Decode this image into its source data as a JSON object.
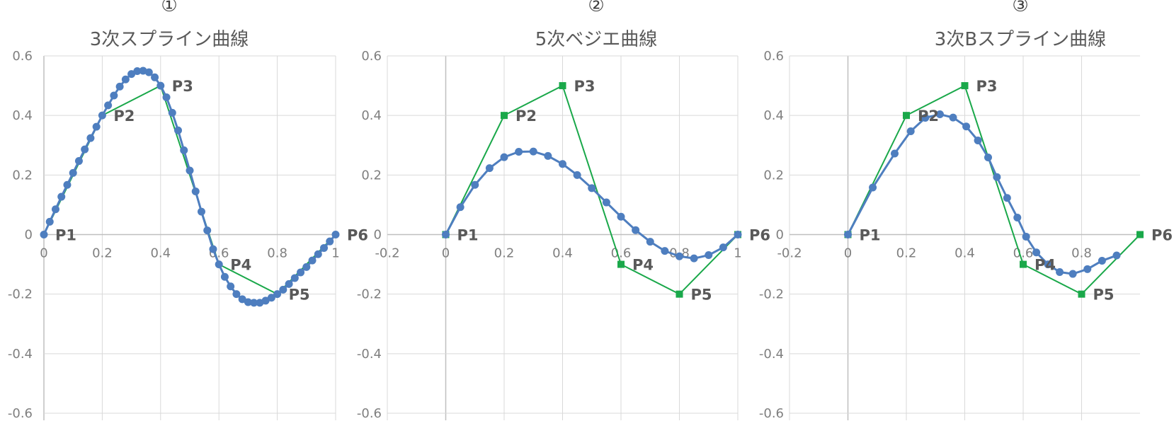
{
  "chart_data": [
    {
      "type": "scatter",
      "number": "①",
      "title": "3次スプライン曲線",
      "xlim": [
        0,
        1
      ],
      "ylim": [
        -0.6,
        0.6
      ],
      "x_ticks": [
        0,
        0.2,
        0.4,
        0.6,
        0.8,
        1
      ],
      "x_tick_labels": [
        "0",
        "0.2",
        "0.4",
        "0.6",
        "0.8",
        "1"
      ],
      "y_ticks": [
        -0.6,
        -0.4,
        -0.2,
        0,
        0.2,
        0.4,
        0.6
      ],
      "y_tick_labels": [
        "-0.6",
        "-0.4",
        "-0.2",
        "0",
        "0.2",
        "0.4",
        "0.6"
      ],
      "grid": true,
      "control_points": [
        {
          "label": "P1",
          "x": 0,
          "y": 0
        },
        {
          "label": "P2",
          "x": 0.2,
          "y": 0.4
        },
        {
          "label": "P3",
          "x": 0.4,
          "y": 0.5
        },
        {
          "label": "P4",
          "x": 0.6,
          "y": -0.1
        },
        {
          "label": "P5",
          "x": 0.8,
          "y": -0.2
        },
        {
          "label": "P6",
          "x": 1,
          "y": 0
        }
      ],
      "control_marker": "none",
      "curve": {
        "x": [
          0,
          0.02,
          0.04,
          0.06,
          0.08,
          0.1,
          0.12,
          0.14,
          0.16,
          0.18,
          0.2,
          0.22,
          0.24,
          0.26,
          0.28,
          0.3,
          0.32,
          0.34,
          0.36,
          0.38,
          0.4,
          0.42,
          0.44,
          0.46,
          0.48,
          0.5,
          0.52,
          0.54,
          0.56,
          0.58,
          0.6,
          0.62,
          0.64,
          0.66,
          0.68,
          0.7,
          0.72,
          0.74,
          0.76,
          0.78,
          0.8,
          0.82,
          0.84,
          0.86,
          0.88,
          0.9,
          0.92,
          0.94,
          0.96,
          0.98,
          1
        ],
        "y": [
          0,
          0.043,
          0.085,
          0.127,
          0.167,
          0.207,
          0.247,
          0.286,
          0.324,
          0.362,
          0.4,
          0.434,
          0.467,
          0.497,
          0.521,
          0.539,
          0.549,
          0.55,
          0.545,
          0.528,
          0.5,
          0.461,
          0.409,
          0.35,
          0.283,
          0.215,
          0.145,
          0.077,
          0.014,
          -0.049,
          -0.1,
          -0.142,
          -0.174,
          -0.2,
          -0.217,
          -0.227,
          -0.229,
          -0.229,
          -0.222,
          -0.212,
          -0.2,
          -0.185,
          -0.166,
          -0.146,
          -0.127,
          -0.109,
          -0.087,
          -0.066,
          -0.045,
          -0.023,
          0
        ]
      },
      "colors": {
        "curve": "#4e7ebf",
        "control": "#1aa84a",
        "grid": "#d9d9d9",
        "axis": "#bfbfbf"
      }
    },
    {
      "type": "scatter",
      "number": "②",
      "title": "5次ベジエ曲線",
      "xlim": [
        -0.2,
        1
      ],
      "ylim": [
        -0.6,
        0.6
      ],
      "x_ticks": [
        -0.2,
        0,
        0.2,
        0.4,
        0.6,
        0.8,
        1
      ],
      "x_tick_labels": [
        "-0.2",
        "0",
        "0.2",
        "0.4",
        "0.6",
        "0.8",
        "1"
      ],
      "y_ticks": [
        -0.6,
        -0.4,
        -0.2,
        0,
        0.2,
        0.4,
        0.6
      ],
      "y_tick_labels": [
        "-0.6",
        "-0.4",
        "-0.2",
        "0",
        "0.2",
        "0.4",
        "0.6"
      ],
      "grid": true,
      "control_points": [
        {
          "label": "P1",
          "x": 0,
          "y": 0
        },
        {
          "label": "P2",
          "x": 0.2,
          "y": 0.4
        },
        {
          "label": "P3",
          "x": 0.4,
          "y": 0.5
        },
        {
          "label": "P4",
          "x": 0.6,
          "y": -0.1
        },
        {
          "label": "P5",
          "x": 0.8,
          "y": -0.2
        },
        {
          "label": "P6",
          "x": 1,
          "y": 0
        }
      ],
      "control_marker": "square",
      "curve": {
        "x": [
          0,
          0.05,
          0.1,
          0.15,
          0.2,
          0.25,
          0.3,
          0.35,
          0.4,
          0.45,
          0.5,
          0.55,
          0.6,
          0.65,
          0.7,
          0.75,
          0.8,
          0.85,
          0.9,
          0.95,
          1
        ],
        "y": [
          0,
          0.092,
          0.167,
          0.223,
          0.26,
          0.278,
          0.279,
          0.264,
          0.237,
          0.2,
          0.156,
          0.108,
          0.06,
          0.015,
          -0.024,
          -0.055,
          -0.073,
          -0.08,
          -0.069,
          -0.043,
          0
        ]
      },
      "colors": {
        "curve": "#4e7ebf",
        "control": "#1aa84a",
        "grid": "#d9d9d9",
        "axis": "#bfbfbf"
      }
    },
    {
      "type": "scatter",
      "number": "③",
      "title": "3次Bスプライン曲線",
      "xlim": [
        -0.2,
        1
      ],
      "ylim": [
        -0.6,
        0.6
      ],
      "x_ticks": [
        -0.2,
        0,
        0.2,
        0.4,
        0.6,
        0.8
      ],
      "x_tick_labels": [
        "-0.2",
        "0",
        "0.2",
        "0.4",
        "0.6",
        "0.8"
      ],
      "y_ticks": [
        -0.6,
        -0.4,
        -0.2,
        0,
        0.2,
        0.4,
        0.6
      ],
      "y_tick_labels": [
        "-0.6",
        "-0.4",
        "-0.2",
        "0",
        "0.2",
        "0.4",
        "0.6"
      ],
      "grid": true,
      "control_points": [
        {
          "label": "P1",
          "x": 0,
          "y": 0
        },
        {
          "label": "P2",
          "x": 0.2,
          "y": 0.4
        },
        {
          "label": "P3",
          "x": 0.4,
          "y": 0.5
        },
        {
          "label": "P4",
          "x": 0.6,
          "y": -0.1
        },
        {
          "label": "P5",
          "x": 0.8,
          "y": -0.2
        },
        {
          "label": "P6",
          "x": 1,
          "y": 0
        }
      ],
      "control_marker": "square",
      "curve": {
        "x": [
          0,
          0.085,
          0.16,
          0.215,
          0.265,
          0.315,
          0.36,
          0.405,
          0.445,
          0.48,
          0.51,
          0.545,
          0.58,
          0.61,
          0.645,
          0.685,
          0.725,
          0.77,
          0.82,
          0.87,
          0.92
        ],
        "y": [
          0,
          0.158,
          0.272,
          0.347,
          0.392,
          0.404,
          0.393,
          0.363,
          0.316,
          0.259,
          0.193,
          0.123,
          0.057,
          -0.007,
          -0.06,
          -0.1,
          -0.126,
          -0.132,
          -0.116,
          -0.088,
          -0.07
        ]
      },
      "colors": {
        "curve": "#4e7ebf",
        "control": "#1aa84a",
        "grid": "#d9d9d9",
        "axis": "#bfbfbf"
      }
    }
  ]
}
